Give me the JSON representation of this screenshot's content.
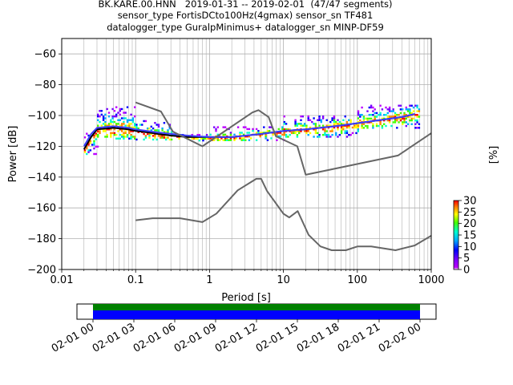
{
  "title_lines": [
    "BK.KARE.00.HNN   2019-01-31 -- 2019-02-01  (47/47 segments)",
    "sensor_type FortisDCto100Hz(4gmax) sensor_sn TF481",
    "datalogger_type GuralpMinimus+ datalogger_sn MINP-DF59"
  ],
  "chart_data": {
    "type": "heatmap",
    "xlabel": "Period [s]",
    "ylabel": "Power [dB]",
    "xscale": "log",
    "xlim": [
      0.01,
      1000
    ],
    "ylim": [
      -200,
      -50
    ],
    "x_ticks": [
      "0.01",
      "0.1",
      "1",
      "10",
      "100",
      "1000"
    ],
    "x_tick_values": [
      0.01,
      0.1,
      1,
      10,
      100,
      1000
    ],
    "y_ticks": [
      "−60",
      "−80",
      "−100",
      "−120",
      "−140",
      "−160",
      "−180",
      "−200"
    ],
    "y_tick_values": [
      -60,
      -80,
      -100,
      -120,
      -140,
      -160,
      -180,
      -200
    ],
    "grid": true,
    "colorbar": {
      "label": "[%]",
      "ticks": [
        "0",
        "5",
        "10",
        "15",
        "20",
        "25",
        "30"
      ],
      "tick_values": [
        0,
        5,
        10,
        15,
        20,
        25,
        30
      ],
      "range": [
        0,
        30
      ],
      "colormap": [
        "#ffffff",
        "#bb00ff",
        "#7700ff",
        "#0000ff",
        "#00aaff",
        "#00ffcc",
        "#44ff00",
        "#ffff00",
        "#ff8800",
        "#ff0000"
      ]
    },
    "density_bands": [
      {
        "x_from": 0.02,
        "x_to": 0.03,
        "y_from": -125,
        "y_to": -110
      },
      {
        "x_from": 0.03,
        "x_to": 0.1,
        "y_from": -115,
        "y_to": -94
      },
      {
        "x_from": 0.1,
        "x_to": 0.3,
        "y_from": -116,
        "y_to": -103
      },
      {
        "x_from": 0.3,
        "x_to": 1,
        "y_from": -116,
        "y_to": -112
      },
      {
        "x_from": 1,
        "x_to": 10,
        "y_from": -116,
        "y_to": -107
      },
      {
        "x_from": 10,
        "x_to": 100,
        "y_from": -114,
        "y_to": -100
      },
      {
        "x_from": 100,
        "x_to": 700,
        "y_from": -108,
        "y_to": -93
      }
    ],
    "series": [
      {
        "style": "mean",
        "color": "#000000",
        "x": [
          0.02,
          0.025,
          0.03,
          0.05,
          0.08,
          0.1,
          0.15,
          0.2,
          0.3,
          0.5,
          1,
          2,
          5,
          10,
          20,
          50,
          100,
          200,
          400,
          600
        ],
        "y": [
          -122,
          -114,
          -109,
          -108,
          -109,
          -110,
          -111,
          -112,
          -113,
          -114,
          -114,
          -114,
          -112,
          -110,
          -109,
          -107,
          -105,
          -103,
          -101,
          -99
        ]
      },
      {
        "style": "mode",
        "color": "#3d3dff",
        "x": [
          0.02,
          0.025,
          0.03,
          0.05,
          0.08,
          0.1,
          0.2,
          0.5,
          1,
          2,
          5,
          10,
          20,
          50,
          100,
          200,
          400,
          600
        ],
        "y": [
          -120,
          -112,
          -108,
          -107,
          -108,
          -109,
          -111,
          -113,
          -114,
          -114,
          -112,
          -110,
          -109,
          -107,
          -105,
          -103,
          -101,
          -99
        ]
      },
      {
        "style": "nhnm",
        "color": "#666666",
        "x": [
          0.1,
          0.22,
          0.32,
          0.8,
          3.8,
          4.6,
          6.3,
          7.9,
          15.4,
          20,
          354.8,
          1000
        ],
        "y": [
          -91.5,
          -97.4,
          -110.5,
          -120,
          -98,
          -96.5,
          -101,
          -113.5,
          -120,
          -138.5,
          -126,
          -111.5
        ]
      },
      {
        "style": "nlnm",
        "color": "#666666",
        "x": [
          0.1,
          0.17,
          0.4,
          0.8,
          1.24,
          2.4,
          4.3,
          5,
          6,
          10,
          12,
          15.6,
          21.9,
          31.6,
          45,
          70,
          101,
          154,
          328,
          600,
          1000
        ],
        "y": [
          -168,
          -166.7,
          -166.7,
          -169.2,
          -163.7,
          -148.6,
          -141.1,
          -141.1,
          -149,
          -163.8,
          -166.2,
          -162.1,
          -177.5,
          -185,
          -187.5,
          -187.5,
          -185,
          -185,
          -187.5,
          -184.4,
          -178
        ]
      }
    ]
  },
  "time_axis": {
    "ticks": [
      "02-01 00",
      "02-01 03",
      "02-01 06",
      "02-01 09",
      "02-01 12",
      "02-01 15",
      "02-01 18",
      "02-01 21",
      "02-02 00"
    ],
    "coverage_colors": [
      "#008000",
      "#0000ff"
    ]
  }
}
